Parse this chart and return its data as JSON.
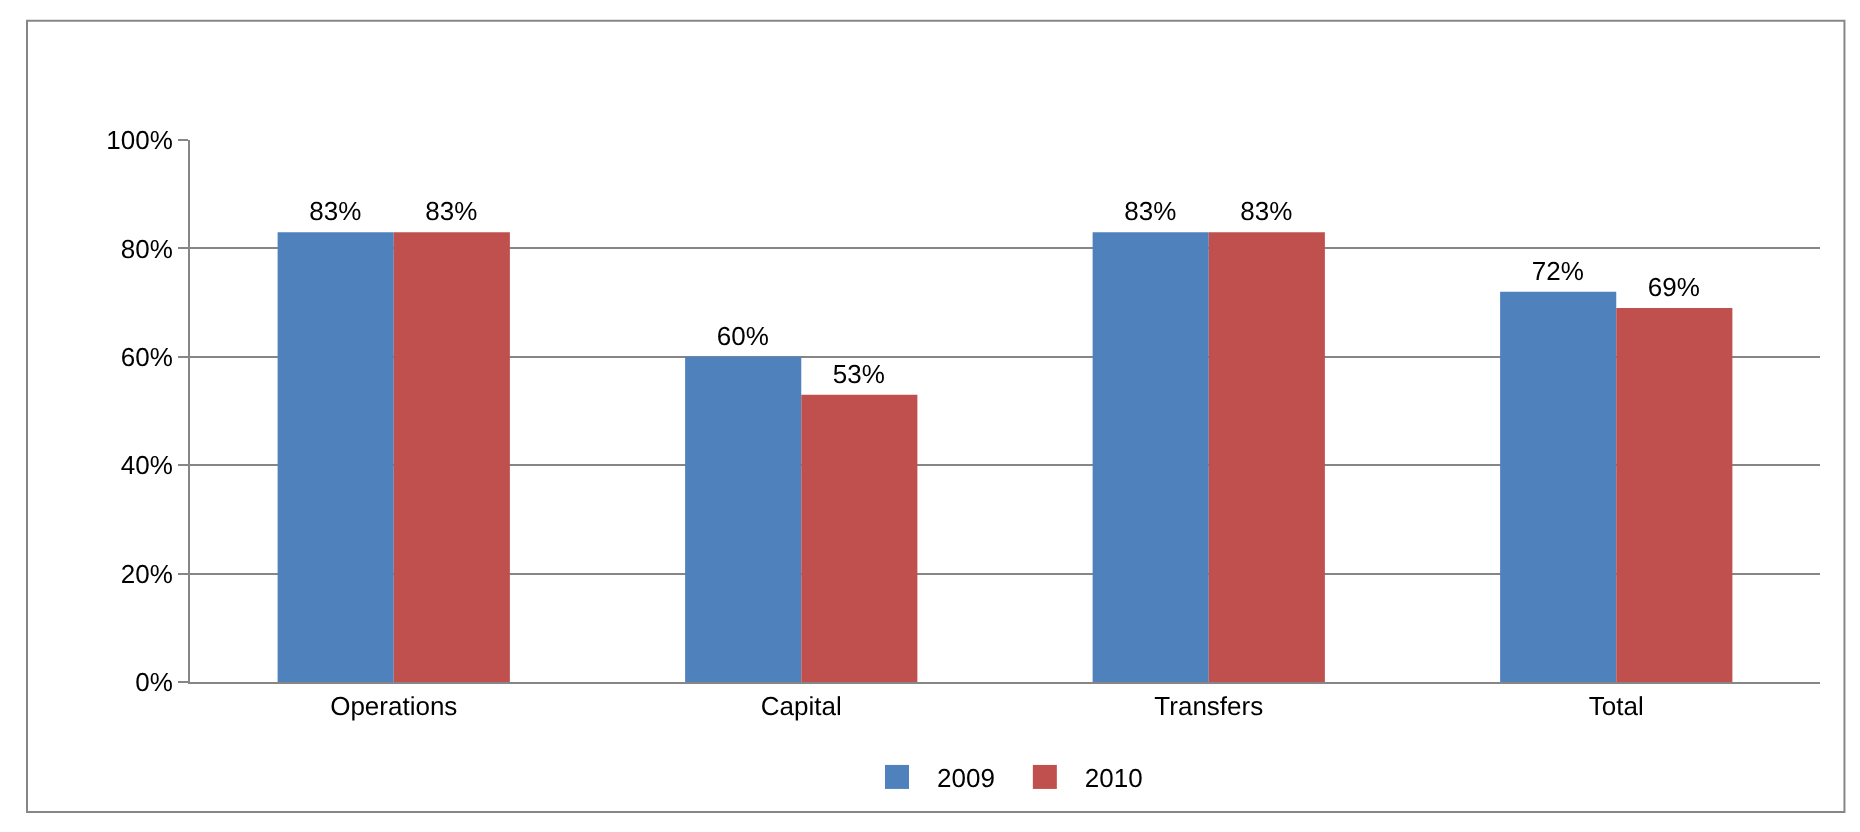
{
  "chart_data": {
    "type": "bar",
    "categories": [
      "Operations",
      "Capital",
      "Transfers",
      "Total"
    ],
    "series": [
      {
        "name": "2009",
        "color": "#4f81bd",
        "values": [
          83,
          60,
          83,
          72
        ],
        "value_labels": [
          "83%",
          "60%",
          "83%",
          "72%"
        ]
      },
      {
        "name": "2010",
        "color": "#c0504d",
        "values": [
          83,
          53,
          83,
          69
        ],
        "value_labels": [
          "83%",
          "53%",
          "83%",
          "69%"
        ]
      }
    ],
    "ylim": [
      0,
      100
    ],
    "yticks": [
      {
        "value": 0,
        "label": "0%"
      },
      {
        "value": 20,
        "label": "20%"
      },
      {
        "value": 40,
        "label": "40%"
      },
      {
        "value": 60,
        "label": "60%"
      },
      {
        "value": 80,
        "label": "80%"
      },
      {
        "value": 100,
        "label": "100%"
      }
    ],
    "grid": "y",
    "legend": "bottom"
  }
}
